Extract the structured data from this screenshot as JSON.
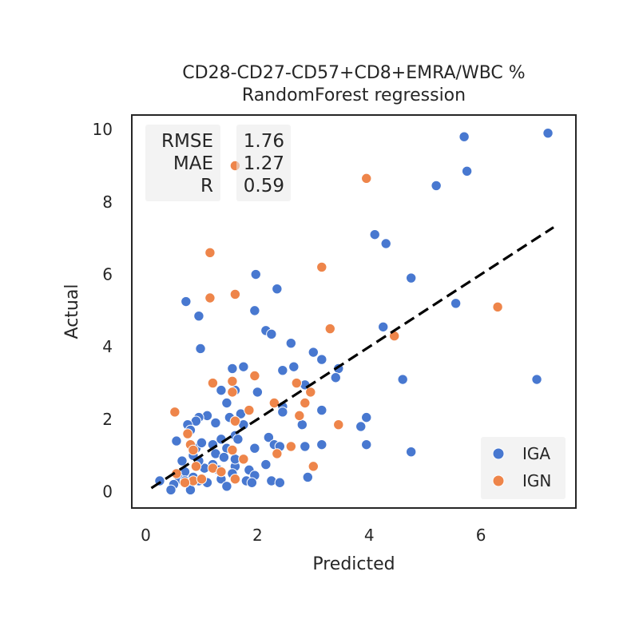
{
  "chart_data": {
    "type": "scatter",
    "title": [
      "CD28-CD27-CD57+CD8+EMRA/WBC %",
      "RandomForest regression"
    ],
    "xlabel": "Predicted",
    "ylabel": "Actual",
    "xlim": [
      -0.25,
      7.7
    ],
    "ylim": [
      -0.45,
      10.4
    ],
    "xticks": [
      0,
      2,
      4,
      6
    ],
    "yticks": [
      0,
      2,
      4,
      6,
      8,
      10
    ],
    "grid": false,
    "legend_position": "lower-right",
    "stats": {
      "labels": [
        "RMSE",
        "MAE",
        "R"
      ],
      "values": [
        "1.76",
        "1.27",
        "0.59"
      ]
    },
    "fit_line": {
      "x": [
        0.1,
        7.3
      ],
      "y": [
        0.1,
        7.3
      ],
      "style": "dashed",
      "color": "#000000"
    },
    "series": [
      {
        "name": "IGA",
        "color": "#4878d0",
        "points": [
          [
            7.2,
            9.9
          ],
          [
            5.7,
            9.8
          ],
          [
            5.75,
            8.85
          ],
          [
            5.2,
            8.45
          ],
          [
            4.1,
            7.1
          ],
          [
            4.3,
            6.85
          ],
          [
            4.75,
            5.9
          ],
          [
            5.55,
            5.2
          ],
          [
            4.25,
            4.55
          ],
          [
            4.6,
            3.1
          ],
          [
            7.0,
            3.1
          ],
          [
            4.75,
            1.1
          ],
          [
            1.97,
            6.0
          ],
          [
            2.35,
            5.6
          ],
          [
            1.95,
            5.0
          ],
          [
            0.95,
            4.85
          ],
          [
            0.72,
            5.25
          ],
          [
            0.98,
            3.95
          ],
          [
            2.15,
            4.45
          ],
          [
            2.25,
            4.35
          ],
          [
            2.6,
            4.1
          ],
          [
            3.0,
            3.85
          ],
          [
            3.15,
            3.65
          ],
          [
            2.45,
            3.35
          ],
          [
            2.65,
            3.45
          ],
          [
            3.45,
            3.4
          ],
          [
            3.4,
            3.15
          ],
          [
            1.55,
            3.4
          ],
          [
            1.75,
            3.45
          ],
          [
            1.35,
            2.8
          ],
          [
            1.6,
            2.8
          ],
          [
            2.0,
            2.75
          ],
          [
            1.45,
            2.45
          ],
          [
            2.45,
            2.35
          ],
          [
            2.45,
            2.2
          ],
          [
            2.85,
            2.95
          ],
          [
            2.8,
            1.85
          ],
          [
            3.15,
            2.25
          ],
          [
            3.95,
            2.05
          ],
          [
            3.85,
            1.8
          ],
          [
            3.95,
            1.3
          ],
          [
            3.15,
            1.3
          ],
          [
            2.85,
            1.25
          ],
          [
            1.1,
            2.1
          ],
          [
            1.25,
            1.9
          ],
          [
            0.95,
            2.05
          ],
          [
            0.9,
            1.95
          ],
          [
            0.75,
            1.85
          ],
          [
            1.5,
            2.05
          ],
          [
            1.7,
            2.15
          ],
          [
            1.75,
            1.85
          ],
          [
            1.6,
            1.55
          ],
          [
            1.35,
            1.45
          ],
          [
            1.2,
            1.3
          ],
          [
            1.45,
            1.2
          ],
          [
            1.65,
            1.45
          ],
          [
            1.25,
            1.05
          ],
          [
            1.95,
            1.2
          ],
          [
            2.2,
            1.5
          ],
          [
            2.3,
            1.3
          ],
          [
            2.4,
            1.25
          ],
          [
            2.15,
            0.75
          ],
          [
            1.85,
            0.6
          ],
          [
            1.6,
            0.7
          ],
          [
            1.4,
            0.95
          ],
          [
            1.2,
            0.75
          ],
          [
            1.05,
            0.65
          ],
          [
            0.95,
            0.85
          ],
          [
            0.85,
            1.0
          ],
          [
            0.65,
            0.85
          ],
          [
            0.55,
            1.4
          ],
          [
            0.8,
            1.7
          ],
          [
            0.9,
            1.2
          ],
          [
            1.0,
            1.35
          ],
          [
            0.7,
            0.55
          ],
          [
            0.6,
            0.35
          ],
          [
            0.5,
            0.2
          ],
          [
            0.45,
            0.05
          ],
          [
            0.8,
            0.05
          ],
          [
            0.95,
            0.3
          ],
          [
            1.1,
            0.25
          ],
          [
            1.35,
            0.35
          ],
          [
            1.45,
            0.15
          ],
          [
            1.55,
            0.5
          ],
          [
            1.8,
            0.3
          ],
          [
            1.95,
            0.45
          ],
          [
            1.9,
            0.25
          ],
          [
            2.25,
            0.3
          ],
          [
            2.4,
            0.25
          ],
          [
            2.9,
            0.4
          ],
          [
            0.25,
            0.3
          ],
          [
            0.7,
            0.3
          ],
          [
            1.3,
            0.6
          ],
          [
            0.85,
            0.4
          ],
          [
            1.6,
            0.9
          ]
        ]
      },
      {
        "name": "IGN",
        "color": "#ee854a",
        "points": [
          [
            1.6,
            9.0
          ],
          [
            3.95,
            8.65
          ],
          [
            1.15,
            6.6
          ],
          [
            3.15,
            6.2
          ],
          [
            1.15,
            5.35
          ],
          [
            1.6,
            5.45
          ],
          [
            6.3,
            5.1
          ],
          [
            3.3,
            4.5
          ],
          [
            4.45,
            4.3
          ],
          [
            1.2,
            3.0
          ],
          [
            1.55,
            3.05
          ],
          [
            1.95,
            3.2
          ],
          [
            2.7,
            3.0
          ],
          [
            1.55,
            2.75
          ],
          [
            2.95,
            2.75
          ],
          [
            2.3,
            2.45
          ],
          [
            2.85,
            2.45
          ],
          [
            2.75,
            2.1
          ],
          [
            1.85,
            2.25
          ],
          [
            0.52,
            2.2
          ],
          [
            1.6,
            1.95
          ],
          [
            3.45,
            1.85
          ],
          [
            0.75,
            1.6
          ],
          [
            0.8,
            1.3
          ],
          [
            0.85,
            1.15
          ],
          [
            1.55,
            1.15
          ],
          [
            2.6,
            1.25
          ],
          [
            2.35,
            1.05
          ],
          [
            1.75,
            0.9
          ],
          [
            0.9,
            0.7
          ],
          [
            1.2,
            0.65
          ],
          [
            1.35,
            0.55
          ],
          [
            0.55,
            0.5
          ],
          [
            3.0,
            0.7
          ],
          [
            1.6,
            0.35
          ],
          [
            0.85,
            0.3
          ],
          [
            1.0,
            0.35
          ],
          [
            0.7,
            0.25
          ]
        ]
      }
    ]
  }
}
